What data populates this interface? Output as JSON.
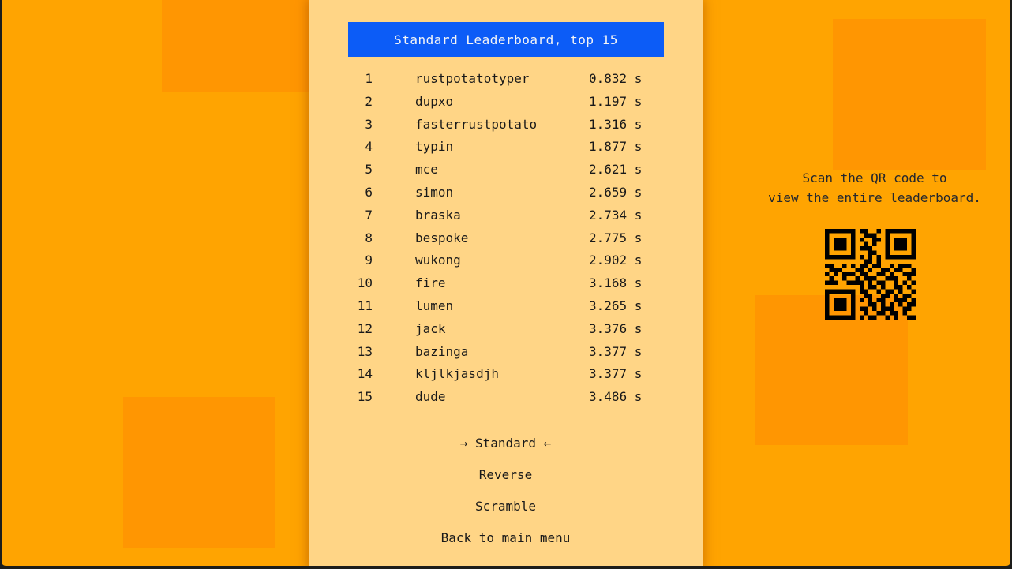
{
  "colors": {
    "background": "#ffa401",
    "tile": "#ff9602",
    "panel": "#ffd586",
    "header_bg": "#0c5cf7",
    "header_text": "#f5f5f5",
    "text": "#191919",
    "frame_border": "#1d1d1b",
    "qr": "#000000"
  },
  "header": {
    "title": "Standard Leaderboard, top 15"
  },
  "leaderboard": {
    "time_unit": "s",
    "rows": [
      {
        "rank": "1",
        "name": "rustpotatotyper",
        "time": "0.832 s"
      },
      {
        "rank": "2",
        "name": "dupxo",
        "time": "1.197 s"
      },
      {
        "rank": "3",
        "name": "fasterrustpotato",
        "time": "1.316 s"
      },
      {
        "rank": "4",
        "name": "typin",
        "time": "1.877 s"
      },
      {
        "rank": "5",
        "name": "mce",
        "time": "2.621 s"
      },
      {
        "rank": "6",
        "name": "simon",
        "time": "2.659 s"
      },
      {
        "rank": "7",
        "name": "braska",
        "time": "2.734 s"
      },
      {
        "rank": "8",
        "name": "bespoke",
        "time": "2.775 s"
      },
      {
        "rank": "9",
        "name": "wukong",
        "time": "2.902 s"
      },
      {
        "rank": "10",
        "name": "fire",
        "time": "3.168 s"
      },
      {
        "rank": "11",
        "name": "lumen",
        "time": "3.265 s"
      },
      {
        "rank": "12",
        "name": "jack",
        "time": "3.376 s"
      },
      {
        "rank": "13",
        "name": "bazinga",
        "time": "3.377 s"
      },
      {
        "rank": "14",
        "name": "kljlkjasdjh",
        "time": "3.377 s"
      },
      {
        "rank": "15",
        "name": "dude",
        "time": "3.486 s"
      }
    ]
  },
  "menu": {
    "selected_index": 0,
    "selected_prefix": "→",
    "selected_suffix": "←",
    "items": [
      {
        "label": "Standard"
      },
      {
        "label": "Reverse"
      },
      {
        "label": "Scramble"
      },
      {
        "label": "Back to main menu"
      }
    ]
  },
  "qr_section": {
    "caption_line1": "Scan the QR code to",
    "caption_line2": "view the entire leaderboard.",
    "qr_matrix": [
      "111111101100101111111",
      "100000100111001000001",
      "101110101001101011101",
      "101110100101001011101",
      "101110101110001011101",
      "100000100011001000001",
      "111111101010101111111",
      "000000000110100000000",
      "110010101101100101110",
      "011100011010011011001",
      "101011101100110100111",
      "010010010111001110010",
      "111001111010110010101",
      "000000001011010011010",
      "111111101100101101001",
      "100000100110011010110",
      "101110101010110011101",
      "101110100011010101011",
      "101110101101011100110",
      "100000100100110110100",
      "111111101011001010011"
    ]
  }
}
